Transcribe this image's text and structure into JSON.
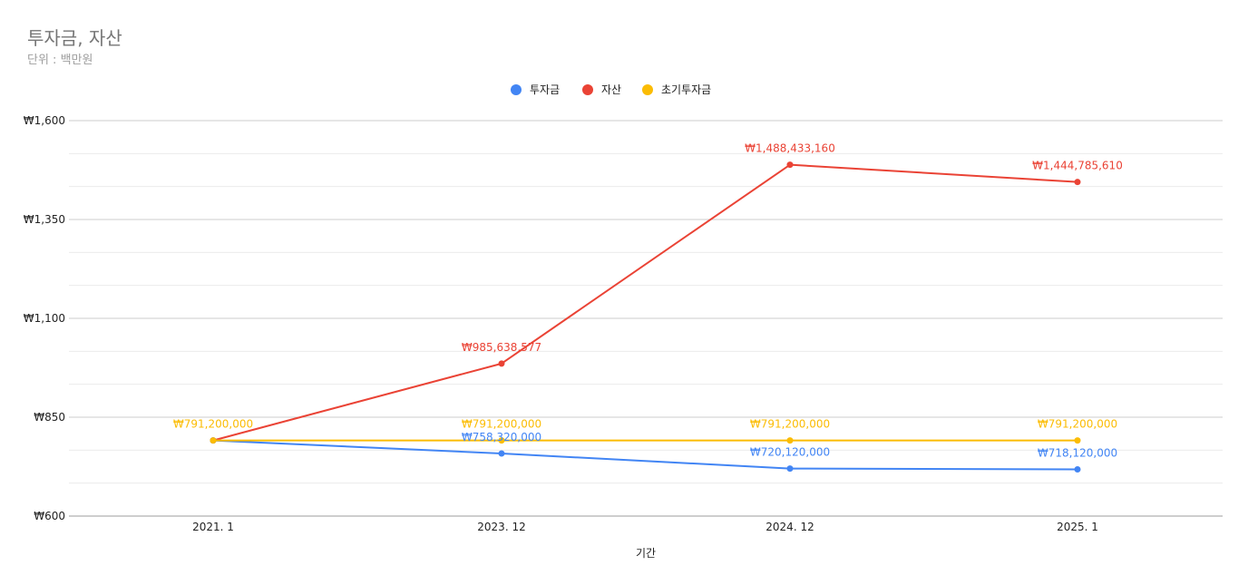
{
  "chart_data": {
    "type": "line",
    "title": "투자금, 자산",
    "subtitle": "단위 : 백만원",
    "xlabel": "기간",
    "ylabel": "",
    "categories": [
      "2021. 1",
      "2023. 12",
      "2024. 12",
      "2025. 1"
    ],
    "ylim": [
      600,
      1600
    ],
    "y_ticks": [
      600,
      850,
      1100,
      1350,
      1600
    ],
    "y_tick_labels": [
      "₩600",
      "₩850",
      "₩1,100",
      "₩1,350",
      "₩1,600"
    ],
    "minor_gridlines": true,
    "legend_position": "top-center",
    "series": [
      {
        "name": "투자금",
        "color": "#4285f4",
        "values": [
          791.2,
          758.32,
          720.12,
          718.12
        ],
        "labels": [
          "",
          "₩758,320,000",
          "₩720,120,000",
          "₩718,120,000"
        ],
        "label_side": [
          "above",
          "above",
          "above",
          "above"
        ]
      },
      {
        "name": "자산",
        "color": "#ea4335",
        "values": [
          791.2,
          985.638577,
          1488.43316,
          1444.78561
        ],
        "labels": [
          "",
          "₩985,638,577",
          "₩1,488,433,160",
          "₩1,444,785,610"
        ],
        "label_side": [
          "above",
          "above",
          "above",
          "above"
        ]
      },
      {
        "name": "초기투자금",
        "color": "#fbbc04",
        "values": [
          791.2,
          791.2,
          791.2,
          791.2
        ],
        "labels": [
          "₩791,200,000",
          "₩791,200,000",
          "₩791,200,000",
          "₩791,200,000"
        ],
        "label_side": [
          "above",
          "above",
          "above",
          "above"
        ]
      }
    ]
  }
}
